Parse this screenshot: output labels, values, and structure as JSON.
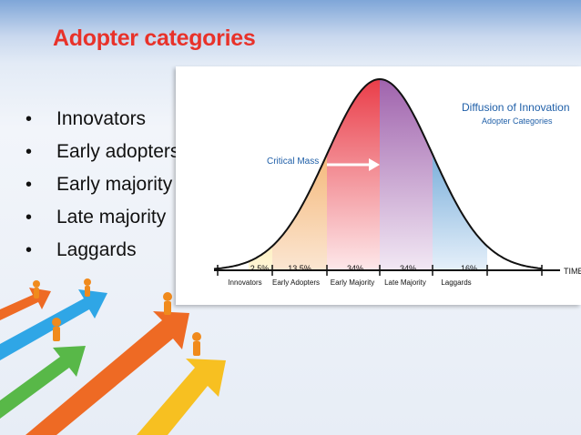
{
  "slide": {
    "title": "Adopter categories",
    "bullets": [
      "Innovators",
      "Early adopters",
      "Early majority",
      "Late majority",
      "Laggards"
    ]
  },
  "figure": {
    "heading": "Diffusion of Innovation",
    "subheading": "Adopter Categories",
    "critical_mass_label": "Critical Mass",
    "axis_label": "TIME",
    "segments": [
      {
        "name": "Innovators",
        "percent": "2.5%",
        "color": "#f7c63a"
      },
      {
        "name": "Early Adopters",
        "percent": "13.5%",
        "color": "#f0973a"
      },
      {
        "name": "Early Majority",
        "percent": "34%",
        "color": "#e8323e"
      },
      {
        "name": "Late Majority",
        "percent": "34%",
        "color": "#9a5aa8"
      },
      {
        "name": "Laggards",
        "percent": "16%",
        "color": "#2a7ec3"
      }
    ]
  },
  "colors": {
    "title": "#e8322a",
    "figure_heading": "#1f5fa8",
    "arrow_blue": "#2fa6e6",
    "arrow_green": "#58b848",
    "arrow_orange": "#ee6a24",
    "arrow_yellow": "#f7c021",
    "figure_icon": "orange-person-icon"
  }
}
